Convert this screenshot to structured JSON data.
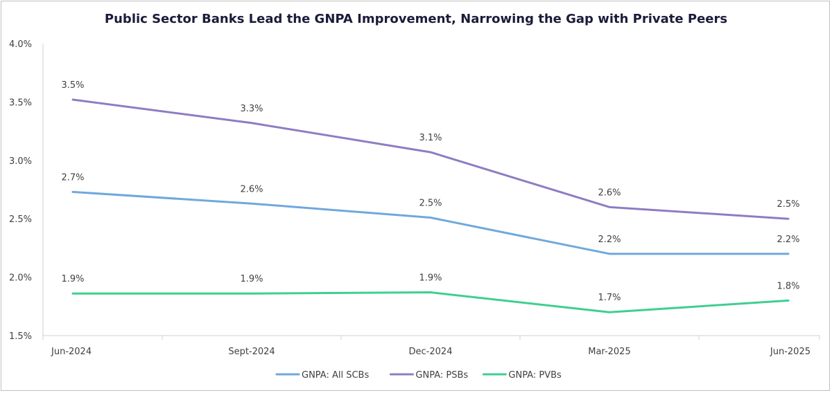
{
  "chart_data": {
    "type": "line",
    "title": "Public Sector Banks Lead the GNPA Improvement, Narrowing the Gap with Private Peers",
    "categories": [
      "Jun-2024",
      "Sept-2024",
      "Dec-2024",
      "Mar-2025",
      "Jun-2025"
    ],
    "ylim": [
      1.5,
      4.0
    ],
    "yticks": [
      "1.5%",
      "2.0%",
      "2.5%",
      "3.0%",
      "3.5%",
      "4.0%"
    ],
    "ytick_values": [
      1.5,
      2.0,
      2.5,
      3.0,
      3.5,
      4.0
    ],
    "grid": false,
    "legend_position": "bottom-center",
    "series": [
      {
        "name": "GNPA: All SCBs",
        "color": "#6fa8dc",
        "values": [
          2.73,
          2.63,
          2.51,
          2.2,
          2.2
        ],
        "labels": [
          "2.7%",
          "2.6%",
          "2.5%",
          "2.2%",
          "2.2%"
        ],
        "label_side": "above"
      },
      {
        "name": "GNPA: PSBs",
        "color": "#8e7cc3",
        "values": [
          3.52,
          3.32,
          3.07,
          2.6,
          2.5
        ],
        "labels": [
          "3.5%",
          "3.3%",
          "3.1%",
          "2.6%",
          "2.5%"
        ],
        "label_side": "above"
      },
      {
        "name": "GNPA:  PVBs",
        "color": "#3ecf8e",
        "values": [
          1.86,
          1.86,
          1.87,
          1.7,
          1.8
        ],
        "labels": [
          "1.9%",
          "1.9%",
          "1.9%",
          "1.7%",
          "1.8%"
        ],
        "label_side": "above"
      }
    ]
  }
}
